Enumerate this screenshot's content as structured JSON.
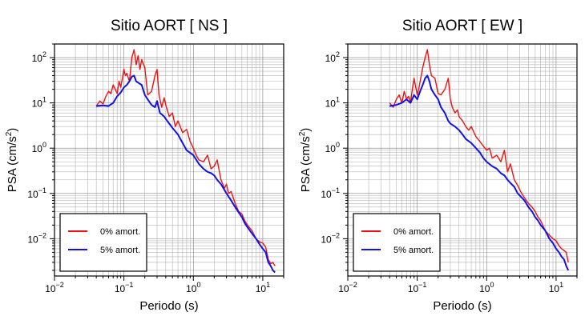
{
  "chart_data": [
    {
      "type": "line",
      "title": "Sitio AORT [ NS ]",
      "xlabel": "Periodo (s)",
      "ylabel": {
        "base": "PSA (cm/s",
        "sup": "2",
        "tail": ")"
      },
      "xscale": "log",
      "yscale": "log",
      "xlim": [
        0.01,
        20
      ],
      "ylim": [
        0.0015,
        200
      ],
      "x_ticks": [
        {
          "base": "10",
          "exp": "−2"
        },
        {
          "base": "10",
          "exp": "−1"
        },
        {
          "base": "10",
          "exp": "0"
        },
        {
          "base": "10",
          "exp": "1"
        }
      ],
      "y_ticks": [
        {
          "base": "10",
          "exp": "−2"
        },
        {
          "base": "10",
          "exp": "−1"
        },
        {
          "base": "10",
          "exp": "0"
        },
        {
          "base": "10",
          "exp": "1"
        },
        {
          "base": "10",
          "exp": "2"
        }
      ],
      "grid": true,
      "legend_position": "bottom-left",
      "series": [
        {
          "name": "0% amort.",
          "color": "#ee1111",
          "points": [
            [
              0.04,
              8.5
            ],
            [
              0.045,
              11
            ],
            [
              0.05,
              9.5
            ],
            [
              0.055,
              14
            ],
            [
              0.06,
              18
            ],
            [
              0.065,
              16
            ],
            [
              0.07,
              25
            ],
            [
              0.075,
              20
            ],
            [
              0.08,
              16
            ],
            [
              0.085,
              30
            ],
            [
              0.09,
              22
            ],
            [
              0.1,
              55
            ],
            [
              0.105,
              40
            ],
            [
              0.11,
              45
            ],
            [
              0.12,
              30
            ],
            [
              0.13,
              100
            ],
            [
              0.14,
              150
            ],
            [
              0.15,
              70
            ],
            [
              0.16,
              110
            ],
            [
              0.17,
              55
            ],
            [
              0.18,
              90
            ],
            [
              0.2,
              60
            ],
            [
              0.22,
              15
            ],
            [
              0.25,
              18
            ],
            [
              0.28,
              40
            ],
            [
              0.3,
              55
            ],
            [
              0.32,
              15
            ],
            [
              0.35,
              8
            ],
            [
              0.38,
              13
            ],
            [
              0.4,
              9
            ],
            [
              0.45,
              5
            ],
            [
              0.5,
              6
            ],
            [
              0.55,
              3
            ],
            [
              0.6,
              4
            ],
            [
              0.7,
              2.2
            ],
            [
              0.8,
              2.6
            ],
            [
              0.9,
              1.4
            ],
            [
              1.0,
              1.0
            ],
            [
              1.1,
              0.7
            ],
            [
              1.2,
              0.55
            ],
            [
              1.4,
              0.5
            ],
            [
              1.6,
              0.7
            ],
            [
              1.8,
              0.35
            ],
            [
              2.0,
              0.4
            ],
            [
              2.2,
              0.55
            ],
            [
              2.5,
              0.2
            ],
            [
              2.8,
              0.13
            ],
            [
              3.0,
              0.16
            ],
            [
              3.2,
              0.1
            ],
            [
              3.5,
              0.11
            ],
            [
              4.0,
              0.06
            ],
            [
              4.5,
              0.04
            ],
            [
              5.0,
              0.035
            ],
            [
              5.5,
              0.025
            ],
            [
              6.0,
              0.02
            ],
            [
              7.0,
              0.015
            ],
            [
              8.0,
              0.01
            ],
            [
              9.0,
              0.0085
            ],
            [
              10.0,
              0.008
            ],
            [
              11.0,
              0.0065
            ],
            [
              12.0,
              0.0035
            ],
            [
              13.0,
              0.0028
            ],
            [
              14.0,
              0.003
            ],
            [
              15.0,
              0.0025
            ]
          ]
        },
        {
          "name": "5% amort.",
          "color": "#1111ee",
          "points": [
            [
              0.04,
              8.5
            ],
            [
              0.05,
              8.8
            ],
            [
              0.06,
              8.5
            ],
            [
              0.07,
              10
            ],
            [
              0.08,
              14
            ],
            [
              0.09,
              17
            ],
            [
              0.1,
              22
            ],
            [
              0.11,
              25
            ],
            [
              0.12,
              30
            ],
            [
              0.13,
              38
            ],
            [
              0.14,
              40
            ],
            [
              0.15,
              30
            ],
            [
              0.16,
              28
            ],
            [
              0.18,
              25
            ],
            [
              0.2,
              15
            ],
            [
              0.22,
              12
            ],
            [
              0.25,
              9
            ],
            [
              0.28,
              8
            ],
            [
              0.3,
              11
            ],
            [
              0.33,
              6
            ],
            [
              0.38,
              5
            ],
            [
              0.42,
              4
            ],
            [
              0.5,
              2.8
            ],
            [
              0.6,
              2
            ],
            [
              0.7,
              1.3
            ],
            [
              0.8,
              0.9
            ],
            [
              1.0,
              0.7
            ],
            [
              1.2,
              0.45
            ],
            [
              1.4,
              0.35
            ],
            [
              1.6,
              0.3
            ],
            [
              1.8,
              0.28
            ],
            [
              2.0,
              0.25
            ],
            [
              2.2,
              0.2
            ],
            [
              2.5,
              0.16
            ],
            [
              2.8,
              0.12
            ],
            [
              3.0,
              0.1
            ],
            [
              3.5,
              0.07
            ],
            [
              4.0,
              0.05
            ],
            [
              4.5,
              0.038
            ],
            [
              5.0,
              0.03
            ],
            [
              5.5,
              0.022
            ],
            [
              6.0,
              0.018
            ],
            [
              7.0,
              0.013
            ],
            [
              8.0,
              0.01
            ],
            [
              9.0,
              0.0075
            ],
            [
              10.0,
              0.006
            ],
            [
              11.0,
              0.005
            ],
            [
              12.0,
              0.003
            ],
            [
              13.0,
              0.0025
            ],
            [
              14.0,
              0.002
            ],
            [
              15.0,
              0.0018
            ]
          ]
        }
      ]
    },
    {
      "type": "line",
      "title": "Sitio AORT [ EW ]",
      "xlabel": "Periodo (s)",
      "ylabel": {
        "base": "PSA (cm/s",
        "sup": "2",
        "tail": ")"
      },
      "xscale": "log",
      "yscale": "log",
      "xlim": [
        0.01,
        20
      ],
      "ylim": [
        0.0015,
        200
      ],
      "x_ticks": [
        {
          "base": "10",
          "exp": "−2"
        },
        {
          "base": "10",
          "exp": "−1"
        },
        {
          "base": "10",
          "exp": "0"
        },
        {
          "base": "10",
          "exp": "1"
        }
      ],
      "y_ticks": [
        {
          "base": "10",
          "exp": "−2"
        },
        {
          "base": "10",
          "exp": "−1"
        },
        {
          "base": "10",
          "exp": "0"
        },
        {
          "base": "10",
          "exp": "1"
        },
        {
          "base": "10",
          "exp": "2"
        }
      ],
      "grid": true,
      "legend_position": "bottom-left",
      "series": [
        {
          "name": "0% amort.",
          "color": "#ee1111",
          "points": [
            [
              0.04,
              10
            ],
            [
              0.045,
              8
            ],
            [
              0.05,
              12
            ],
            [
              0.055,
              15
            ],
            [
              0.06,
              10
            ],
            [
              0.065,
              18
            ],
            [
              0.07,
              12
            ],
            [
              0.075,
              14
            ],
            [
              0.08,
              10
            ],
            [
              0.085,
              20
            ],
            [
              0.09,
              35
            ],
            [
              0.1,
              15
            ],
            [
              0.105,
              20
            ],
            [
              0.11,
              30
            ],
            [
              0.12,
              60
            ],
            [
              0.13,
              100
            ],
            [
              0.14,
              150
            ],
            [
              0.15,
              70
            ],
            [
              0.16,
              40
            ],
            [
              0.18,
              35
            ],
            [
              0.2,
              16
            ],
            [
              0.22,
              15
            ],
            [
              0.25,
              20
            ],
            [
              0.28,
              35
            ],
            [
              0.3,
              12
            ],
            [
              0.32,
              8
            ],
            [
              0.35,
              6
            ],
            [
              0.38,
              7
            ],
            [
              0.4,
              5
            ],
            [
              0.45,
              4
            ],
            [
              0.5,
              3
            ],
            [
              0.55,
              2.5
            ],
            [
              0.6,
              3
            ],
            [
              0.7,
              1.8
            ],
            [
              0.8,
              1.4
            ],
            [
              0.9,
              1.1
            ],
            [
              1.0,
              0.9
            ],
            [
              1.1,
              1.0
            ],
            [
              1.2,
              0.6
            ],
            [
              1.4,
              0.7
            ],
            [
              1.6,
              0.5
            ],
            [
              1.8,
              0.9
            ],
            [
              2.0,
              0.3
            ],
            [
              2.2,
              0.45
            ],
            [
              2.5,
              0.2
            ],
            [
              2.8,
              0.15
            ],
            [
              3.0,
              0.12
            ],
            [
              3.2,
              0.1
            ],
            [
              3.5,
              0.08
            ],
            [
              4.0,
              0.06
            ],
            [
              4.5,
              0.05
            ],
            [
              5.0,
              0.04
            ],
            [
              5.5,
              0.03
            ],
            [
              6.0,
              0.025
            ],
            [
              7.0,
              0.015
            ],
            [
              8.0,
              0.012
            ],
            [
              9.0,
              0.01
            ],
            [
              10.0,
              0.009
            ],
            [
              11.0,
              0.007
            ],
            [
              12.0,
              0.006
            ],
            [
              13.0,
              0.0055
            ],
            [
              14.0,
              0.005
            ],
            [
              15.0,
              0.003
            ]
          ]
        },
        {
          "name": "5% amort.",
          "color": "#1111ee",
          "points": [
            [
              0.04,
              8.5
            ],
            [
              0.05,
              9
            ],
            [
              0.06,
              10
            ],
            [
              0.07,
              12
            ],
            [
              0.08,
              10
            ],
            [
              0.09,
              15
            ],
            [
              0.1,
              12
            ],
            [
              0.11,
              18
            ],
            [
              0.12,
              25
            ],
            [
              0.13,
              35
            ],
            [
              0.14,
              40
            ],
            [
              0.15,
              30
            ],
            [
              0.16,
              20
            ],
            [
              0.18,
              15
            ],
            [
              0.2,
              12
            ],
            [
              0.22,
              8
            ],
            [
              0.25,
              6
            ],
            [
              0.28,
              4
            ],
            [
              0.3,
              3.5
            ],
            [
              0.35,
              3
            ],
            [
              0.4,
              2.5
            ],
            [
              0.45,
              2
            ],
            [
              0.5,
              1.6
            ],
            [
              0.6,
              1.3
            ],
            [
              0.7,
              1.0
            ],
            [
              0.8,
              0.8
            ],
            [
              0.9,
              0.6
            ],
            [
              1.0,
              0.5
            ],
            [
              1.2,
              0.4
            ],
            [
              1.4,
              0.35
            ],
            [
              1.6,
              0.28
            ],
            [
              1.8,
              0.25
            ],
            [
              2.0,
              0.2
            ],
            [
              2.2,
              0.17
            ],
            [
              2.5,
              0.14
            ],
            [
              2.8,
              0.1
            ],
            [
              3.0,
              0.09
            ],
            [
              3.5,
              0.07
            ],
            [
              4.0,
              0.05
            ],
            [
              4.5,
              0.04
            ],
            [
              5.0,
              0.03
            ],
            [
              5.5,
              0.025
            ],
            [
              6.0,
              0.02
            ],
            [
              7.0,
              0.015
            ],
            [
              8.0,
              0.01
            ],
            [
              9.0,
              0.008
            ],
            [
              10.0,
              0.006
            ],
            [
              11.0,
              0.005
            ],
            [
              12.0,
              0.004
            ],
            [
              13.0,
              0.0035
            ],
            [
              14.0,
              0.0025
            ],
            [
              15.0,
              0.002
            ]
          ]
        }
      ]
    }
  ]
}
